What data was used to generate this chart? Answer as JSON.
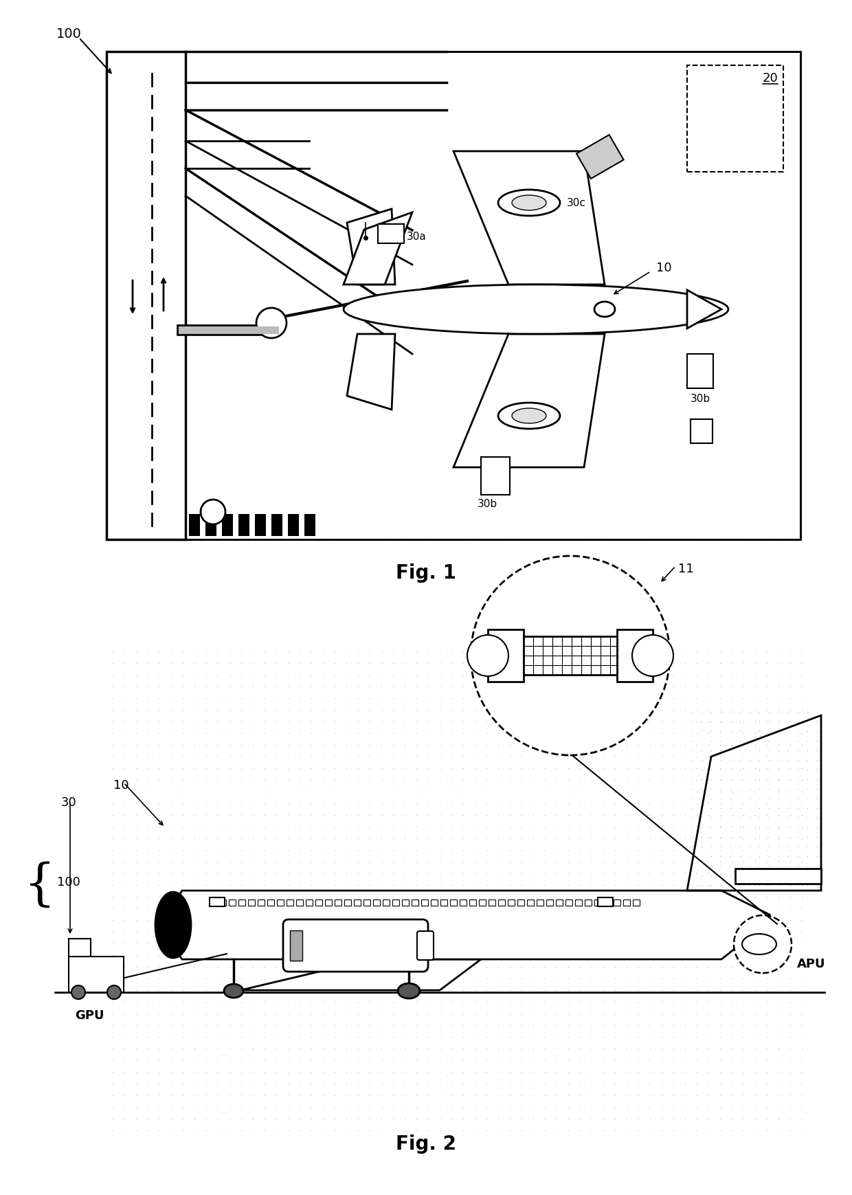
{
  "fig_width": 12.4,
  "fig_height": 17.39,
  "bg_color": "#ffffff",
  "fig1_label": "Fig. 1",
  "fig2_label": "Fig. 2",
  "lw": 1.8
}
